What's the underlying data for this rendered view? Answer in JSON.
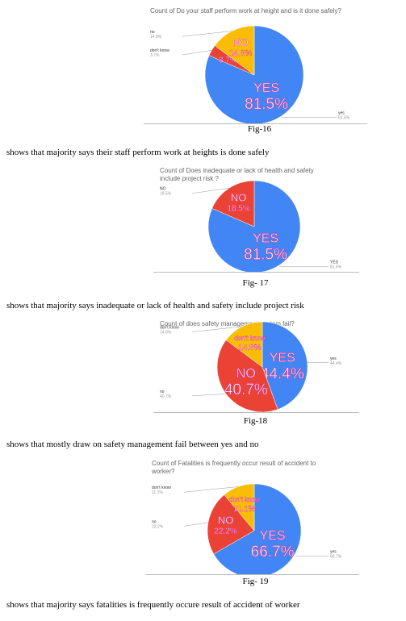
{
  "chart_data": [
    {
      "type": "pie",
      "title": "Count of Do your staff perform work at height and is it done safely?",
      "categories": [
        "yes",
        "don't know",
        "no"
      ],
      "values": [
        81.5,
        3.7,
        14.8
      ],
      "value_labels": [
        "81.5%",
        "3.7%",
        "14.8%"
      ],
      "slice_labels": [
        "YES",
        null,
        "NO"
      ],
      "colors": [
        "#4285f4",
        "#ea4335",
        "#fbbc04"
      ]
    },
    {
      "type": "pie",
      "title": "Count of Does inadequate or lack of health and safety include project risk ?",
      "categories": [
        "YES",
        "NO"
      ],
      "values": [
        81.5,
        18.5
      ],
      "value_labels": [
        "81.5%",
        "18.5%"
      ],
      "colors": [
        "#4285f4",
        "#ea4335"
      ]
    },
    {
      "type": "pie",
      "title": "Count of does safety management system fail?",
      "categories": [
        "yes",
        "no",
        "don't know"
      ],
      "values": [
        44.4,
        40.7,
        14.8
      ],
      "value_labels": [
        "44.4%",
        "40.7%",
        "14.8%"
      ],
      "slice_labels": [
        "YES",
        "NO",
        "don't know"
      ],
      "colors": [
        "#4285f4",
        "#ea4335",
        "#fbbc04"
      ]
    },
    {
      "type": "pie",
      "title": "Count of Fatalities is frequently occur result of accident to worker?",
      "categories": [
        "yes",
        "no",
        "don't know"
      ],
      "values": [
        66.7,
        22.2,
        11.1
      ],
      "value_labels": [
        "66.7%",
        "22.2%",
        "11.1%"
      ],
      "slice_labels": [
        "YES",
        "NO",
        "don't know"
      ],
      "colors": [
        "#4285f4",
        "#ea4335",
        "#fbbc04"
      ]
    }
  ],
  "document": {
    "captions": [
      "Fig-16",
      "Fig- 17",
      "Fig-18",
      "Fig- 19"
    ],
    "descriptions": [
      "shows that majority says their staff perform work at heights is done safely",
      "shows that majority says inadequate or lack of health and safety include project risk",
      "shows that mostly draw  on safety management fail between yes and no",
      "shows that majority says fatalities is frequently occure result of accident of worker"
    ]
  }
}
